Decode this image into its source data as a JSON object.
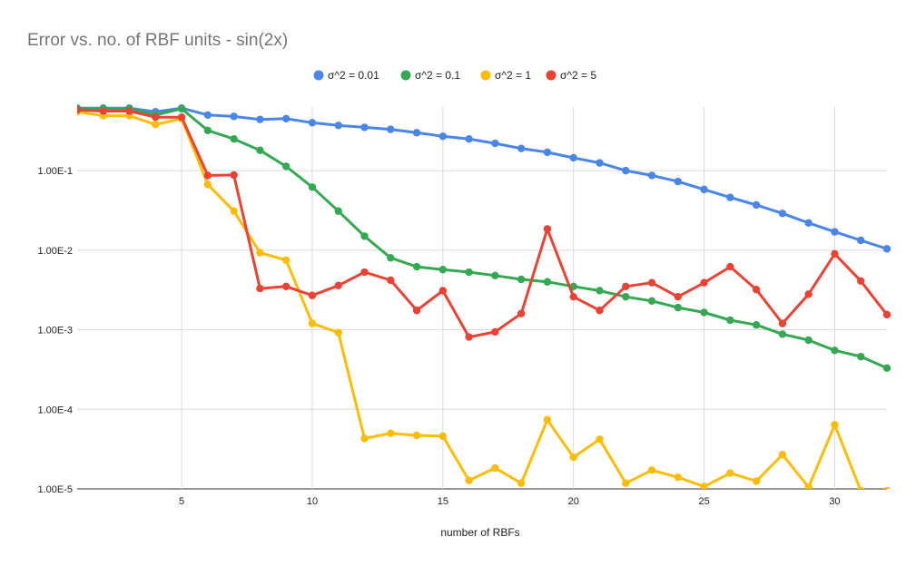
{
  "chart_data": {
    "type": "line",
    "title": "Error vs. no. of RBF units - sin(2x)",
    "xlabel": "number of RBFs",
    "ylabel": "",
    "yscale": "log",
    "xlim": [
      1,
      32
    ],
    "ylim": [
      1e-05,
      0.63
    ],
    "xticks": [
      5,
      10,
      15,
      20,
      25,
      30
    ],
    "yticks": [
      {
        "value": 0.1,
        "label": "1.00E-1"
      },
      {
        "value": 0.01,
        "label": "1.00E-2"
      },
      {
        "value": 0.001,
        "label": "1.00E-3"
      },
      {
        "value": 0.0001,
        "label": "1.00E-4"
      },
      {
        "value": 1e-05,
        "label": "1.00E-5"
      }
    ],
    "grid": true,
    "legend_position": "top",
    "x": [
      1,
      2,
      3,
      4,
      5,
      6,
      7,
      8,
      9,
      10,
      11,
      12,
      13,
      14,
      15,
      16,
      17,
      18,
      19,
      20,
      21,
      22,
      23,
      24,
      25,
      26,
      27,
      28,
      29,
      30,
      31,
      32
    ],
    "series": [
      {
        "name": "σ^2 = 0.01",
        "color": "#4a86e8",
        "values": [
          0.61,
          0.61,
          0.61,
          0.55,
          0.61,
          0.5,
          0.48,
          0.44,
          0.45,
          0.4,
          0.37,
          0.35,
          0.33,
          0.3,
          0.27,
          0.25,
          0.22,
          0.19,
          0.17,
          0.145,
          0.125,
          0.1,
          0.087,
          0.073,
          0.058,
          0.046,
          0.037,
          0.029,
          0.022,
          0.017,
          0.0133,
          0.0104
        ]
      },
      {
        "name": "σ^2 = 0.1",
        "color": "#34a853",
        "values": [
          0.6,
          0.6,
          0.6,
          0.5,
          0.6,
          0.32,
          0.25,
          0.18,
          0.113,
          0.062,
          0.031,
          0.015,
          0.008,
          0.0062,
          0.0057,
          0.0053,
          0.0048,
          0.0043,
          0.004,
          0.0035,
          0.0031,
          0.0026,
          0.0023,
          0.0019,
          0.00165,
          0.00132,
          0.00115,
          0.00088,
          0.00074,
          0.00055,
          0.00046,
          0.00033
        ]
      },
      {
        "name": "σ^2 = 1",
        "color": "#fbbc04",
        "values": [
          0.55,
          0.49,
          0.49,
          0.38,
          0.45,
          0.067,
          0.031,
          0.0093,
          0.0075,
          0.0012,
          0.00092,
          4.3e-05,
          5e-05,
          4.7e-05,
          4.6e-05,
          1.28e-05,
          1.83e-05,
          1.18e-05,
          7.4e-05,
          2.5e-05,
          4.2e-05,
          1.18e-05,
          1.72e-05,
          1.4e-05,
          1.07e-05,
          1.58e-05,
          1.25e-05,
          2.7e-05,
          1.05e-05,
          6.4e-05,
          9.5e-06,
          9.5e-06
        ]
      },
      {
        "name": "σ^2 = 5",
        "color": "#ea4335",
        "values": [
          0.58,
          0.56,
          0.56,
          0.47,
          0.47,
          0.087,
          0.088,
          0.0033,
          0.0035,
          0.0027,
          0.0036,
          0.0053,
          0.0042,
          0.00175,
          0.0031,
          0.00081,
          0.00094,
          0.0016,
          0.0185,
          0.0026,
          0.00175,
          0.0035,
          0.0039,
          0.0026,
          0.0039,
          0.0062,
          0.0032,
          0.0012,
          0.0028,
          0.009,
          0.0041,
          0.00155
        ]
      }
    ]
  }
}
